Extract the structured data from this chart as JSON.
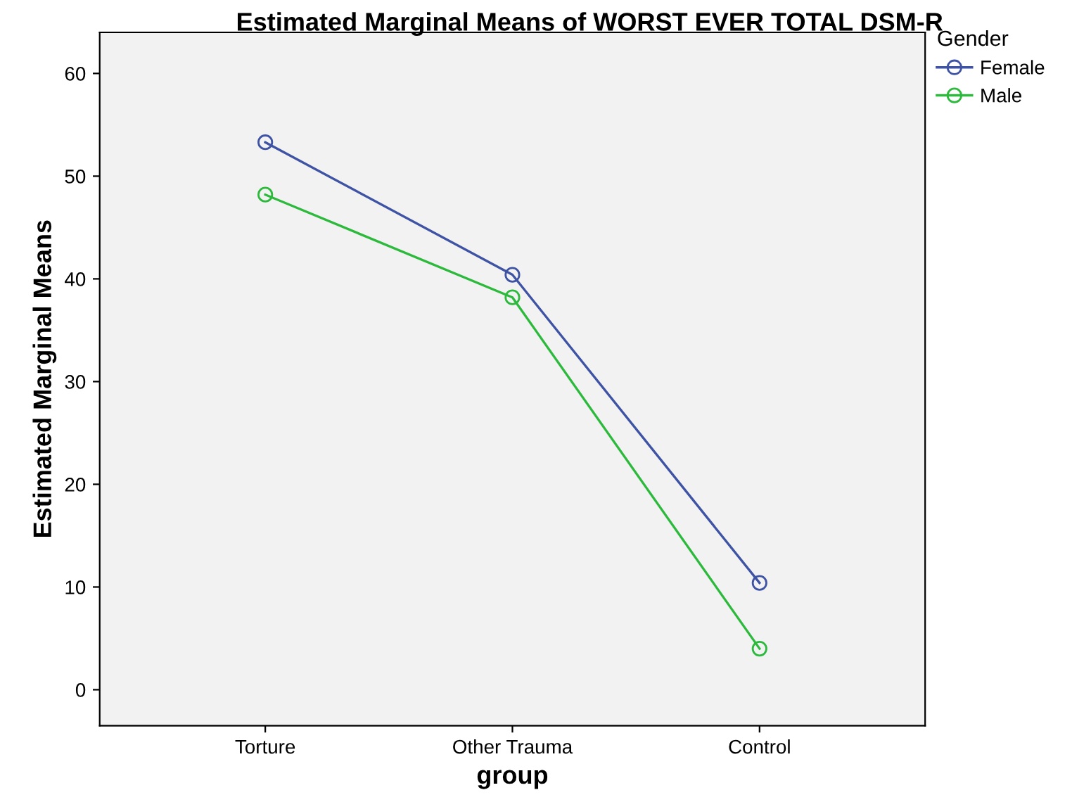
{
  "chart_data": {
    "type": "line",
    "title": "Estimated Marginal Means of WORST EVER TOTAL DSM-R",
    "xlabel": "group",
    "ylabel": "Estimated Marginal Means",
    "legend_title": "Gender",
    "categories": [
      "Torture",
      "Other Trauma",
      "Control"
    ],
    "series": [
      {
        "name": "Female",
        "color": "#3e53a4",
        "values": [
          53.3,
          40.4,
          10.4
        ]
      },
      {
        "name": "Male",
        "color": "#2cb93c",
        "values": [
          48.2,
          38.2,
          4.0
        ]
      }
    ],
    "ylim": [
      -3.5,
      64
    ],
    "yticks": [
      0,
      10,
      20,
      30,
      40,
      50,
      60
    ],
    "marker": "circle",
    "line_style": "solid",
    "grid": false,
    "legend": "top right"
  }
}
